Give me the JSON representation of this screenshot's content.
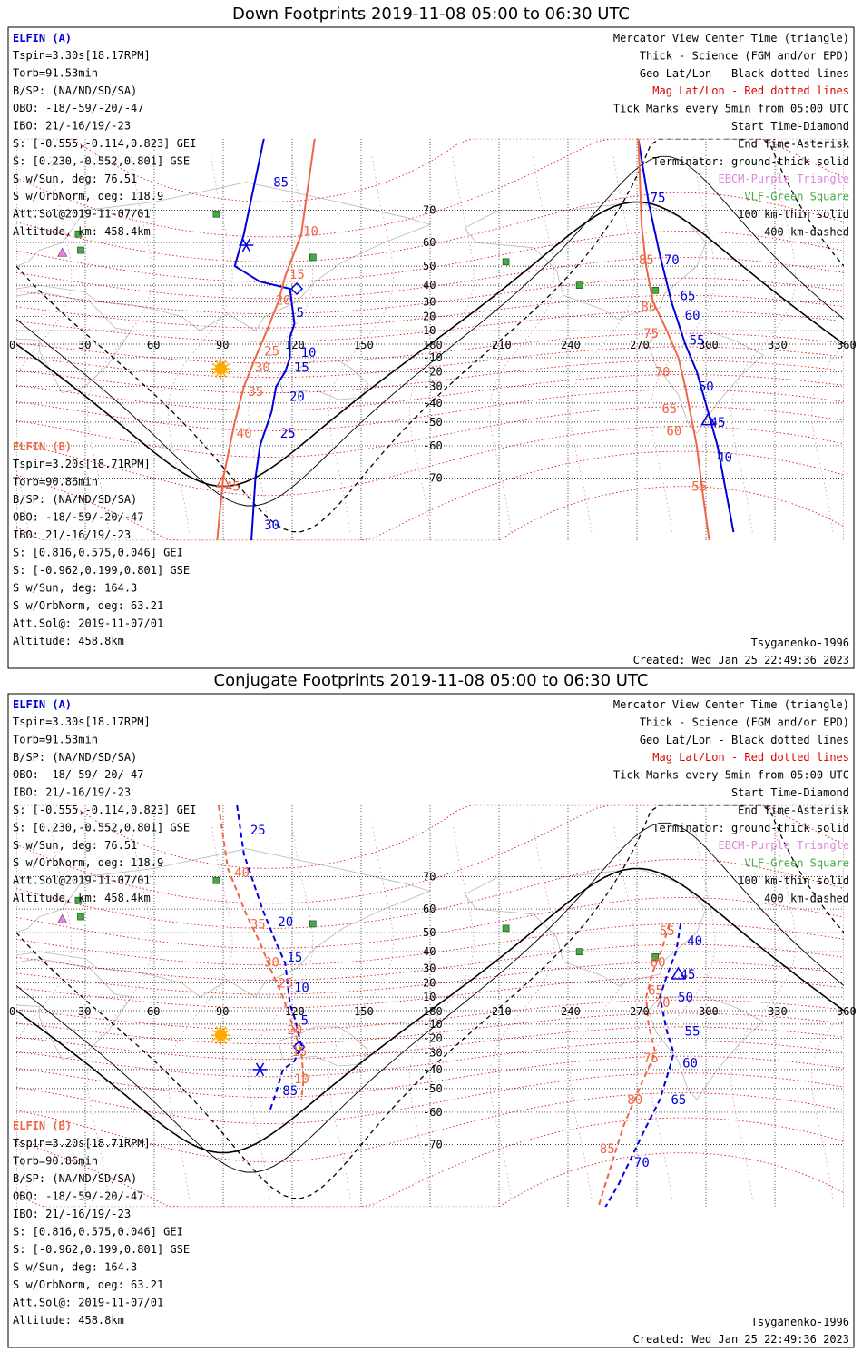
{
  "colors": {
    "elfin_a": "#0000dd",
    "elfin_b": "#ee6644",
    "mag_grid": "#dd0000",
    "ebcm": "#dd88dd",
    "vlf": "#44aa44",
    "sun": "#ffaa00"
  },
  "info_a": {
    "title": "ELFIN (A)",
    "lines": [
      "Tspin=3.30s[18.17RPM]",
      "Torb=91.53min",
      "B/SP: (NA/ND/SD/SA)",
      "OBO: -18/-59/-20/-47",
      "IBO: 21/-16/19/-23",
      "S: [-0.555,-0.114,0.823] GEI",
      "S: [0.230,-0.552,0.801] GSE",
      "S w/Sun, deg: 76.51",
      "S w/OrbNorm, deg: 118.9",
      "Att.Sol@2019-11-07/01",
      "Altitude, km: 458.4km"
    ]
  },
  "info_b": {
    "title": "ELFIN (B)",
    "lines": [
      "Tspin=3.20s[18.71RPM]",
      "Torb=90.86min",
      "B/SP: (NA/ND/SD/SA)",
      "OBO: -18/-59/-20/-47",
      "IBO: 21/-16/19/-23",
      "S: [0.816,0.575,0.046] GEI",
      "S: [-0.962,0.199,0.801] GSE",
      "S w/Sun, deg: 164.3",
      "S w/OrbNorm, deg: 63.21",
      "Att.Sol@: 2019-11-07/01",
      "Altitude: 458.8km"
    ]
  },
  "legend": {
    "lines": [
      {
        "text": "Mercator View Center Time (triangle)",
        "color": "#000000"
      },
      {
        "text": "Thick - Science (FGM and/or EPD)",
        "color": "#000000"
      },
      {
        "text": "Geo Lat/Lon - Black dotted lines",
        "color": "#000000"
      },
      {
        "text": "Mag Lat/Lon - Red dotted lines",
        "color": "#dd0000"
      },
      {
        "text": "Tick Marks every 5min from 05:00 UTC",
        "color": "#000000"
      },
      {
        "text": "Start Time-Diamond",
        "color": "#000000"
      },
      {
        "text": "End Time-Asterisk",
        "color": "#000000"
      },
      {
        "text": "Terminator: ground-thick solid",
        "color": "#000000"
      },
      {
        "text": "EBCM-Purple Triangle",
        "color": "#dd88dd"
      },
      {
        "text": "VLF-Green Square",
        "color": "#44aa44"
      },
      {
        "text": "100 km-thin solid",
        "color": "#000000"
      },
      {
        "text": "400 km-dashed",
        "color": "#000000"
      }
    ]
  },
  "footer": {
    "model": "Tsyganenko-1996",
    "created": "Created: Wed Jan 25 22:49:36 2023"
  },
  "chart_data": [
    {
      "type": "map",
      "title": "Down Footprints 2019-11-08 05:00 to 06:30 UTC",
      "projection": "mercator",
      "x_ticks": [
        0,
        30,
        60,
        90,
        120,
        150,
        180,
        210,
        240,
        270,
        300,
        330,
        360
      ],
      "y_ticks": [
        70,
        60,
        50,
        40,
        30,
        20,
        10,
        0,
        -10,
        -20,
        -30,
        -40,
        -50,
        -60,
        -70
      ],
      "sun": {
        "lon": 89,
        "lat": -18
      },
      "vlf_sites": [
        [
          87,
          69
        ],
        [
          27,
          63
        ],
        [
          28,
          57
        ],
        [
          129,
          54
        ],
        [
          213,
          52
        ],
        [
          245,
          40
        ],
        [
          278,
          37
        ]
      ],
      "ebcm_sites": [
        [
          20,
          56
        ]
      ],
      "series": [
        {
          "name": "ELFIN (A)",
          "style": "solid",
          "points": [
            [
              111,
              85
            ],
            [
              99,
              63
            ],
            [
              95,
              50
            ],
            [
              106,
              42
            ],
            [
              119,
              38
            ],
            [
              121,
              15
            ],
            [
              119,
              5
            ],
            [
              119,
              -10
            ],
            [
              117,
              -20
            ],
            [
              113,
              -30
            ],
            [
              111,
              -45
            ],
            [
              106,
              -60
            ],
            [
              104,
              -70
            ],
            [
              102,
              -82
            ]
          ],
          "start": [
            122,
            38
          ],
          "end": [
            100,
            59
          ],
          "ticks": [
            {
              "label": "85",
              "lon": 111,
              "lat": 76
            },
            {
              "label": "5",
              "lon": 121,
              "lat": 23
            },
            {
              "label": "10",
              "lon": 123,
              "lat": -6
            },
            {
              "label": "15",
              "lon": 120,
              "lat": -17
            },
            {
              "label": "20",
              "lon": 118,
              "lat": -36
            },
            {
              "label": "25",
              "lon": 114,
              "lat": -55
            },
            {
              "label": "30",
              "lon": 107,
              "lat": -79
            }
          ]
        },
        {
          "name": "ELFIN (A)",
          "style": "solid",
          "points": [
            [
              268,
              85
            ],
            [
              275,
              72
            ],
            [
              280,
              55
            ],
            [
              285,
              30
            ],
            [
              291,
              0
            ],
            [
              296,
              -20
            ],
            [
              301,
              -45
            ],
            [
              305,
              -60
            ],
            [
              312,
              -80
            ]
          ],
          "ticks": [
            {
              "label": "75",
              "lon": 275,
              "lat": 73
            },
            {
              "label": "70",
              "lon": 281,
              "lat": 53
            },
            {
              "label": "65",
              "lon": 288,
              "lat": 34
            },
            {
              "label": "60",
              "lon": 290,
              "lat": 21
            },
            {
              "label": "55",
              "lon": 292,
              "lat": 3
            },
            {
              "label": "50",
              "lon": 296,
              "lat": -30
            },
            {
              "label": "45",
              "lon": 301,
              "lat": -50
            },
            {
              "label": "40",
              "lon": 304,
              "lat": -64
            }
          ]
        },
        {
          "name": "ELFIN (B)",
          "style": "solid",
          "points": [
            [
              132,
              85
            ],
            [
              124,
              63
            ],
            [
              117,
              45
            ],
            [
              114,
              30
            ],
            [
              109,
              10
            ],
            [
              104,
              -10
            ],
            [
              99,
              -30
            ],
            [
              95,
              -50
            ],
            [
              90,
              -70
            ],
            [
              87,
              -82
            ]
          ],
          "ticks": [
            {
              "label": "10",
              "lon": 124,
              "lat": 64
            },
            {
              "label": "15",
              "lon": 118,
              "lat": 46
            },
            {
              "label": "20",
              "lon": 112,
              "lat": 31
            },
            {
              "label": "25",
              "lon": 107,
              "lat": -5
            },
            {
              "label": "30",
              "lon": 103,
              "lat": -17
            },
            {
              "label": "35",
              "lon": 100,
              "lat": -33
            },
            {
              "label": "40",
              "lon": 95,
              "lat": -55
            },
            {
              "label": "45",
              "lon": 90,
              "lat": -72
            }
          ]
        },
        {
          "name": "ELFIN (B)",
          "style": "solid",
          "points": [
            [
              270,
              85
            ],
            [
              272,
              66
            ],
            [
              274,
              50
            ],
            [
              277,
              30
            ],
            [
              283,
              10
            ],
            [
              288,
              -10
            ],
            [
              291,
              -30
            ],
            [
              294,
              -50
            ],
            [
              296,
              -60
            ],
            [
              299,
              -75
            ],
            [
              302,
              -82
            ]
          ],
          "ticks": [
            {
              "label": "85",
              "lon": 270,
              "lat": 53
            },
            {
              "label": "80",
              "lon": 271,
              "lat": 27
            },
            {
              "label": "75",
              "lon": 272,
              "lat": 8
            },
            {
              "label": "70",
              "lon": 277,
              "lat": -20
            },
            {
              "label": "65",
              "lon": 280,
              "lat": -43
            },
            {
              "label": "60",
              "lon": 282,
              "lat": -54
            },
            {
              "label": "55",
              "lon": 293,
              "lat": -72
            }
          ]
        }
      ]
    },
    {
      "type": "map",
      "title": "Conjugate Footprints 2019-11-08 05:00 to 06:30 UTC",
      "projection": "mercator",
      "x_ticks": [
        0,
        30,
        60,
        90,
        120,
        150,
        180,
        210,
        240,
        270,
        300,
        330,
        360
      ],
      "y_ticks": [
        70,
        60,
        50,
        40,
        30,
        20,
        10,
        0,
        -10,
        -20,
        -30,
        -40,
        -50,
        -60,
        -70
      ],
      "sun": {
        "lon": 89,
        "lat": -18
      },
      "vlf_sites": [
        [
          87,
          69
        ],
        [
          27,
          63
        ],
        [
          28,
          57
        ],
        [
          129,
          54
        ],
        [
          213,
          52
        ],
        [
          245,
          40
        ],
        [
          278,
          37
        ]
      ],
      "ebcm_sites": [
        [
          20,
          56
        ]
      ],
      "series": [
        {
          "name": "ELFIN (A)",
          "style": "dashed",
          "points": [
            [
              96,
              82
            ],
            [
              99,
              75
            ],
            [
              107,
              60
            ],
            [
              113,
              45
            ],
            [
              117,
              33
            ],
            [
              118,
              20
            ],
            [
              119,
              5
            ],
            [
              121,
              -5
            ],
            [
              124,
              -25
            ],
            [
              121,
              -35
            ],
            [
              116,
              -40
            ],
            [
              112,
              -55
            ],
            [
              110,
              -60
            ]
          ],
          "start": [
            123,
            -26
          ],
          "end": [
            106,
            -40
          ],
          "ticks": [
            {
              "label": "25",
              "lon": 101,
              "lat": 79
            },
            {
              "label": "20",
              "lon": 113,
              "lat": 55
            },
            {
              "label": "15",
              "lon": 117,
              "lat": 37
            },
            {
              "label": "10",
              "lon": 120,
              "lat": 17
            },
            {
              "label": "5",
              "lon": 123,
              "lat": -7
            },
            {
              "label": "85",
              "lon": 115,
              "lat": -51
            }
          ]
        },
        {
          "name": "ELFIN (A)",
          "style": "dashed",
          "points": [
            [
              289,
              54
            ],
            [
              287,
              40
            ],
            [
              283,
              25
            ],
            [
              280,
              10
            ],
            [
              283,
              -15
            ],
            [
              286,
              -30
            ],
            [
              284,
              -40
            ],
            [
              280,
              -55
            ],
            [
              274,
              -65
            ],
            [
              262,
              -78
            ],
            [
              254,
              -82
            ]
          ],
          "ticks": [
            {
              "label": "40",
              "lon": 291,
              "lat": 46
            },
            {
              "label": "45",
              "lon": 288,
              "lat": 26
            },
            {
              "label": "50",
              "lon": 287,
              "lat": 10
            },
            {
              "label": "55",
              "lon": 290,
              "lat": -15
            },
            {
              "label": "60",
              "lon": 289,
              "lat": -36
            },
            {
              "label": "65",
              "lon": 284,
              "lat": -55
            },
            {
              "label": "70",
              "lon": 268,
              "lat": -74
            }
          ]
        },
        {
          "name": "ELFIN (B)",
          "style": "dashed",
          "points": [
            [
              88,
              82
            ],
            [
              92,
              72
            ],
            [
              100,
              58
            ],
            [
              106,
              45
            ],
            [
              111,
              28
            ],
            [
              116,
              10
            ],
            [
              121,
              -15
            ],
            [
              124,
              -30
            ],
            [
              125,
              -45
            ],
            [
              124,
              -55
            ]
          ],
          "ticks": [
            {
              "label": "40",
              "lon": 94,
              "lat": 71
            },
            {
              "label": "35",
              "lon": 101,
              "lat": 54
            },
            {
              "label": "30",
              "lon": 107,
              "lat": 34
            },
            {
              "label": "25",
              "lon": 113,
              "lat": 20
            },
            {
              "label": "20",
              "lon": 117,
              "lat": -14
            },
            {
              "label": "15",
              "lon": 119,
              "lat": -29
            },
            {
              "label": "10",
              "lon": 120,
              "lat": -45
            }
          ]
        },
        {
          "name": "ELFIN (B)",
          "style": "dashed",
          "points": [
            [
              284,
              54
            ],
            [
              281,
              42
            ],
            [
              277,
              28
            ],
            [
              274,
              10
            ],
            [
              275,
              -10
            ],
            [
              278,
              -30
            ],
            [
              271,
              -50
            ],
            [
              264,
              -65
            ],
            [
              252,
              -82
            ]
          ],
          "ticks": [
            {
              "label": "55",
              "lon": 279,
              "lat": 51
            },
            {
              "label": "60",
              "lon": 275,
              "lat": 34
            },
            {
              "label": "65",
              "lon": 274,
              "lat": 15
            },
            {
              "label": "70",
              "lon": 277,
              "lat": 6
            },
            {
              "label": "75",
              "lon": 272,
              "lat": -33
            },
            {
              "label": "80",
              "lon": 265,
              "lat": -55
            },
            {
              "label": "85",
              "lon": 253,
              "lat": -71
            }
          ]
        }
      ]
    }
  ]
}
